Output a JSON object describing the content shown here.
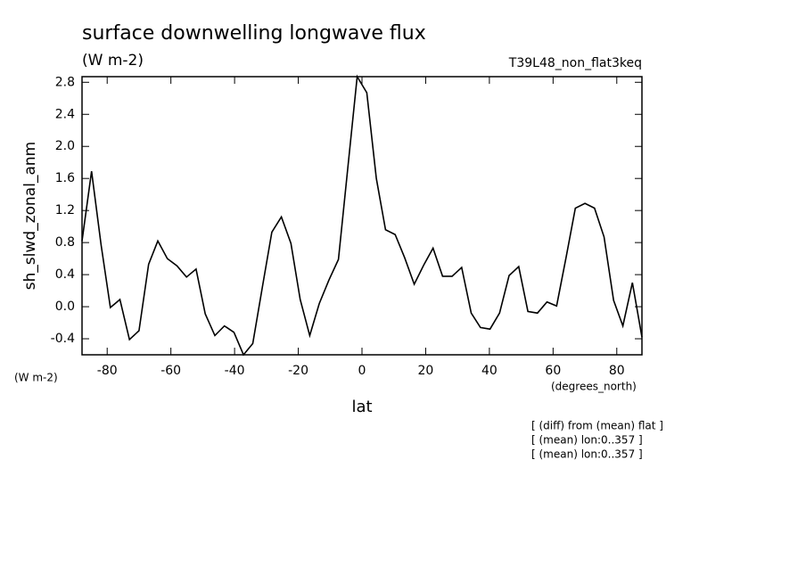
{
  "chart_data": {
    "type": "line",
    "title": "surface downwelling longwave flux",
    "subtitle": "(W m-2)",
    "experiment": "T39L48_non_flat3keq",
    "ylabel": "sh_slwd_zonal_anm",
    "yunits": "(W m-2)",
    "xunits": "(degrees_north)",
    "xlabel": "lat",
    "notes": [
      "[ (diff) from (mean) flat ]",
      "[ (mean) lon:0..357 ]",
      "[ (mean) lon:0..357 ]"
    ],
    "x": [
      -87.9,
      -84.9,
      -81.9,
      -79.0,
      -76.0,
      -73.0,
      -70.0,
      -67.0,
      -64.1,
      -61.1,
      -58.1,
      -55.1,
      -52.1,
      -49.2,
      -46.2,
      -43.2,
      -40.2,
      -37.2,
      -34.3,
      -31.3,
      -28.3,
      -25.3,
      -22.3,
      -19.4,
      -16.4,
      -13.4,
      -10.4,
      -7.4,
      -4.5,
      -1.5,
      1.5,
      4.5,
      7.4,
      10.4,
      13.4,
      16.4,
      19.4,
      22.3,
      25.3,
      28.3,
      31.3,
      34.3,
      37.2,
      40.2,
      43.2,
      46.2,
      49.2,
      52.1,
      55.1,
      58.1,
      61.1,
      64.1,
      67.0,
      70.0,
      73.0,
      76.0,
      79.0,
      81.9,
      84.9,
      87.9
    ],
    "values": [
      0.82,
      1.69,
      0.77,
      -0.01,
      0.09,
      -0.41,
      -0.3,
      0.53,
      0.82,
      0.6,
      0.51,
      0.37,
      0.47,
      -0.09,
      -0.36,
      -0.24,
      -0.32,
      -0.6,
      -0.46,
      0.24,
      0.93,
      1.12,
      0.79,
      0.09,
      -0.36,
      0.04,
      0.33,
      0.59,
      1.71,
      2.87,
      2.67,
      1.6,
      0.96,
      0.9,
      0.61,
      0.28,
      0.52,
      0.73,
      0.38,
      0.38,
      0.49,
      -0.08,
      -0.26,
      -0.28,
      -0.08,
      0.39,
      0.5,
      -0.06,
      -0.08,
      0.06,
      0.01,
      0.62,
      1.23,
      1.29,
      1.23,
      0.87,
      0.08,
      -0.24,
      0.3,
      -0.38
    ],
    "color": "#000000",
    "xlim": [
      -87.9,
      87.9
    ],
    "ylim": [
      -0.6,
      2.87
    ],
    "xticks": [
      -80,
      -60,
      -40,
      -20,
      0,
      20,
      40,
      60,
      80
    ],
    "yticks": [
      -0.4,
      {
        "value": 0,
        "label": "0.0"
      },
      0.4,
      0.8,
      1.2,
      1.6,
      {
        "value": 2,
        "label": "2.0"
      },
      2.4,
      2.8
    ]
  }
}
